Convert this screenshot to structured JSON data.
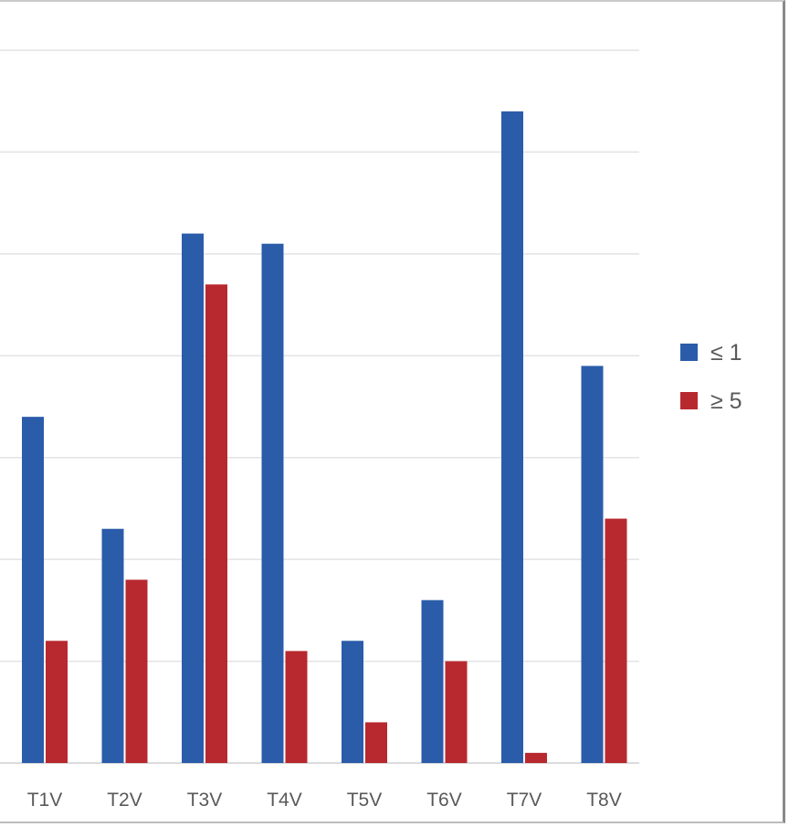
{
  "chart_data": {
    "type": "bar",
    "title": "",
    "xlabel": "",
    "ylabel": "",
    "categories": [
      "T1V",
      "T2V",
      "T3V",
      "T4V",
      "T5V",
      "T6V",
      "T7V",
      "T8V"
    ],
    "series": [
      {
        "name": "≤ 1",
        "color": "#2a5caa",
        "values": [
          3.4,
          2.3,
          5.2,
          5.1,
          1.2,
          1.6,
          6.4,
          3.9
        ]
      },
      {
        "name": "≥ 5",
        "color": "#b8292f",
        "values": [
          1.2,
          1.8,
          4.7,
          1.1,
          0.4,
          1.0,
          0.1,
          2.4
        ]
      }
    ],
    "ylim": [
      0,
      7
    ],
    "gridlines": true,
    "legend": "right"
  }
}
